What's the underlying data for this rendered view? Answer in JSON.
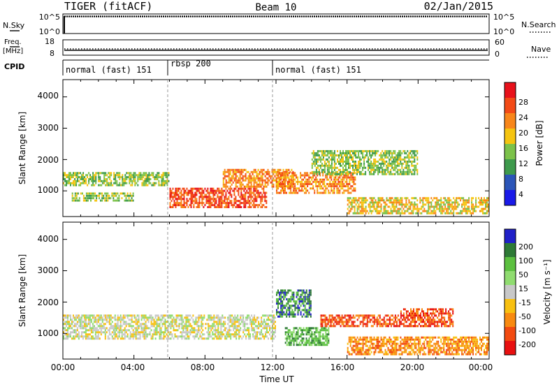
{
  "header": {
    "title": "TIGER (fitACF)",
    "beam": "Beam 10",
    "date": "02/Jan/2015"
  },
  "strips": {
    "nsky_label": "N.Sky",
    "nsky_ticks": [
      "10^5",
      "10^0"
    ],
    "nsearch_label": "N.Search",
    "nsearch_ticks": [
      "10^5",
      "10^0"
    ],
    "freq_label_line1": "Freq.",
    "freq_label_line2": "[MHz]",
    "freq_ticks": [
      "18",
      "8"
    ],
    "nave_label": "Nave",
    "nave_ticks": [
      "60",
      "0"
    ],
    "cpid_label": "CPID",
    "cpid_segments": [
      {
        "label": "normal (fast) 151",
        "start": 0,
        "end": 6
      },
      {
        "label": "rbsp 200",
        "start": 6,
        "end": 12
      },
      {
        "label": "normal (fast) 151",
        "start": 12,
        "end": 24
      }
    ]
  },
  "panels": {
    "ylabel": "Slant Range [km]",
    "xlabel": "Time UT",
    "yticks": [
      "4000",
      "3000",
      "2000",
      "1000"
    ],
    "xticks": [
      "00:00",
      "04:00",
      "08:00",
      "12:00",
      "16:00",
      "20:00",
      "00:00"
    ]
  },
  "colorbars": {
    "power": {
      "label": "Power [dB]",
      "ticks": [
        "28",
        "24",
        "20",
        "16",
        "12",
        "8",
        "4"
      ],
      "colors": [
        "#e8111b",
        "#f34a16",
        "#f8861a",
        "#f5c410",
        "#7cc24a",
        "#3e9a4c",
        "#2b55b8",
        "#1a1ae8"
      ]
    },
    "velocity": {
      "label": "Velocity [m s⁻¹]",
      "ticks": [
        "200",
        "100",
        "50",
        "15",
        "-15",
        "-50",
        "-100",
        "-200"
      ],
      "colors": [
        "#2020c8",
        "#2e7a36",
        "#5cc040",
        "#90dc70",
        "#c8c8c8",
        "#f8c010",
        "#f88a10",
        "#f24a10",
        "#e81010"
      ]
    }
  },
  "chart_data": [
    {
      "type": "heatmap",
      "title": "Power",
      "xlabel": "Time UT",
      "ylabel": "Slant Range [km]",
      "xlim": [
        0,
        24
      ],
      "ylim": [
        180,
        4550
      ],
      "colorbar": "Power [dB]",
      "bands": [
        {
          "t0": 0.0,
          "t1": 6.0,
          "r0": 1150,
          "r1": 1600,
          "value": 14
        },
        {
          "t0": 0.5,
          "t1": 4.0,
          "r0": 650,
          "r1": 950,
          "value": 12
        },
        {
          "t0": 6.0,
          "t1": 11.5,
          "r0": 450,
          "r1": 1100,
          "value": 24
        },
        {
          "t0": 9.0,
          "t1": 13.0,
          "r0": 1100,
          "r1": 1700,
          "value": 22
        },
        {
          "t0": 12.0,
          "t1": 16.5,
          "r0": 900,
          "r1": 1600,
          "value": 20
        },
        {
          "t0": 14.0,
          "t1": 20.0,
          "r0": 1500,
          "r1": 2300,
          "value": 12
        },
        {
          "t0": 16.0,
          "t1": 24.0,
          "r0": 250,
          "r1": 800,
          "value": 18
        }
      ]
    },
    {
      "type": "heatmap",
      "title": "Velocity",
      "xlabel": "Time UT",
      "ylabel": "Slant Range [km]",
      "xlim": [
        0,
        24
      ],
      "ylim": [
        180,
        4550
      ],
      "colorbar": "Velocity [m s⁻¹]",
      "bands": [
        {
          "t0": 0.0,
          "t1": 12.0,
          "r0": 800,
          "r1": 1600,
          "value": 0
        },
        {
          "t0": 12.5,
          "t1": 15.0,
          "r0": 600,
          "r1": 1200,
          "value": 60
        },
        {
          "t0": 12.0,
          "t1": 14.0,
          "r0": 1500,
          "r1": 2400,
          "value": 150
        },
        {
          "t0": 14.5,
          "t1": 19.0,
          "r0": 1200,
          "r1": 1600,
          "value": -150
        },
        {
          "t0": 19.0,
          "t1": 22.0,
          "r0": 1200,
          "r1": 1800,
          "value": -200
        },
        {
          "t0": 16.0,
          "t1": 24.0,
          "r0": 300,
          "r1": 900,
          "value": -60
        }
      ]
    }
  ]
}
